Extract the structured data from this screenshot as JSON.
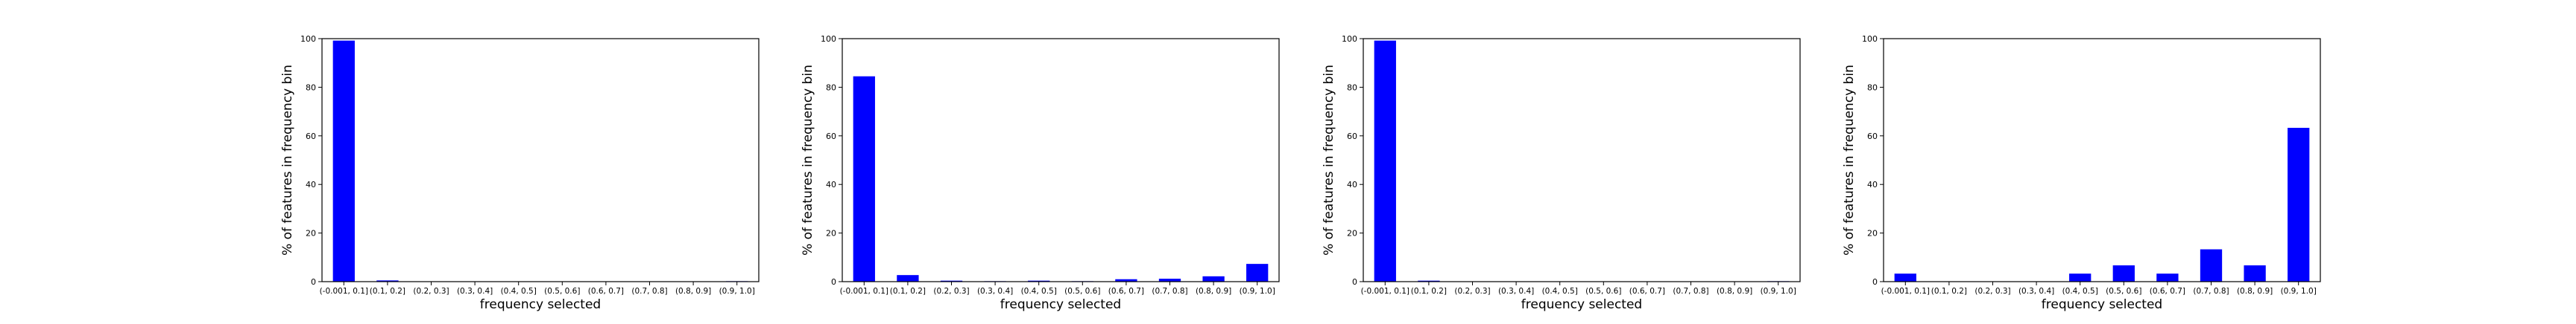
{
  "chart_data": [
    {
      "type": "bar",
      "categories": [
        "(-0.001, 0.1]",
        "(0.1, 0.2]",
        "(0.2, 0.3]",
        "(0.3, 0.4]",
        "(0.4, 0.5]",
        "(0.5, 0.6]",
        "(0.6, 0.7]",
        "(0.7, 0.8]",
        "(0.8, 0.9]",
        "(0.9, 1.0]"
      ],
      "values": [
        99.2,
        0.5,
        0.1,
        0.1,
        0.1,
        0.1,
        0.1,
        0.1,
        0.1,
        0.2
      ],
      "xlabel": "frequency selected",
      "ylabel": "% of features in frequency bin",
      "ylim": [
        0,
        100
      ],
      "yticks": [
        0,
        20,
        40,
        60,
        80,
        100
      ],
      "bar_color": "#0000ff",
      "grid": false
    },
    {
      "type": "bar",
      "categories": [
        "(-0.001, 0.1]",
        "(0.1, 0.2]",
        "(0.2, 0.3]",
        "(0.3, 0.4]",
        "(0.4, 0.5]",
        "(0.5, 0.6]",
        "(0.6, 0.7]",
        "(0.7, 0.8]",
        "(0.8, 0.9]",
        "(0.9, 1.0]"
      ],
      "values": [
        84.5,
        2.7,
        0.4,
        0.2,
        0.4,
        0.2,
        1.0,
        1.2,
        2.2,
        7.3
      ],
      "xlabel": "frequency selected",
      "ylabel": "% of features in frequency bin",
      "ylim": [
        0,
        100
      ],
      "yticks": [
        0,
        20,
        40,
        60,
        80,
        100
      ],
      "bar_color": "#0000ff",
      "grid": false
    },
    {
      "type": "bar",
      "categories": [
        "(-0.001, 0.1]",
        "(0.1, 0.2]",
        "(0.2, 0.3]",
        "(0.3, 0.4]",
        "(0.4, 0.5]",
        "(0.5, 0.6]",
        "(0.6, 0.7]",
        "(0.7, 0.8]",
        "(0.8, 0.9]",
        "(0.9, 1.0]"
      ],
      "values": [
        99.2,
        0.4,
        0.1,
        0.1,
        0.1,
        0.1,
        0.1,
        0.1,
        0.1,
        0.2
      ],
      "xlabel": "frequency selected",
      "ylabel": "% of features in frequency bin",
      "ylim": [
        0,
        100
      ],
      "yticks": [
        0,
        20,
        40,
        60,
        80,
        100
      ],
      "bar_color": "#0000ff",
      "grid": false
    },
    {
      "type": "bar",
      "categories": [
        "(-0.001, 0.1]",
        "(0.1, 0.2]",
        "(0.2, 0.3]",
        "(0.3, 0.4]",
        "(0.4, 0.5]",
        "(0.5, 0.6]",
        "(0.6, 0.7]",
        "(0.7, 0.8]",
        "(0.8, 0.9]",
        "(0.9, 1.0]"
      ],
      "values": [
        3.3,
        0,
        0,
        0,
        3.3,
        6.7,
        3.3,
        13.3,
        6.7,
        63.3
      ],
      "xlabel": "frequency selected",
      "ylabel": "% of features in frequency bin",
      "ylim": [
        0,
        100
      ],
      "yticks": [
        0,
        20,
        40,
        60,
        80,
        100
      ],
      "bar_color": "#0000ff",
      "grid": false
    }
  ]
}
